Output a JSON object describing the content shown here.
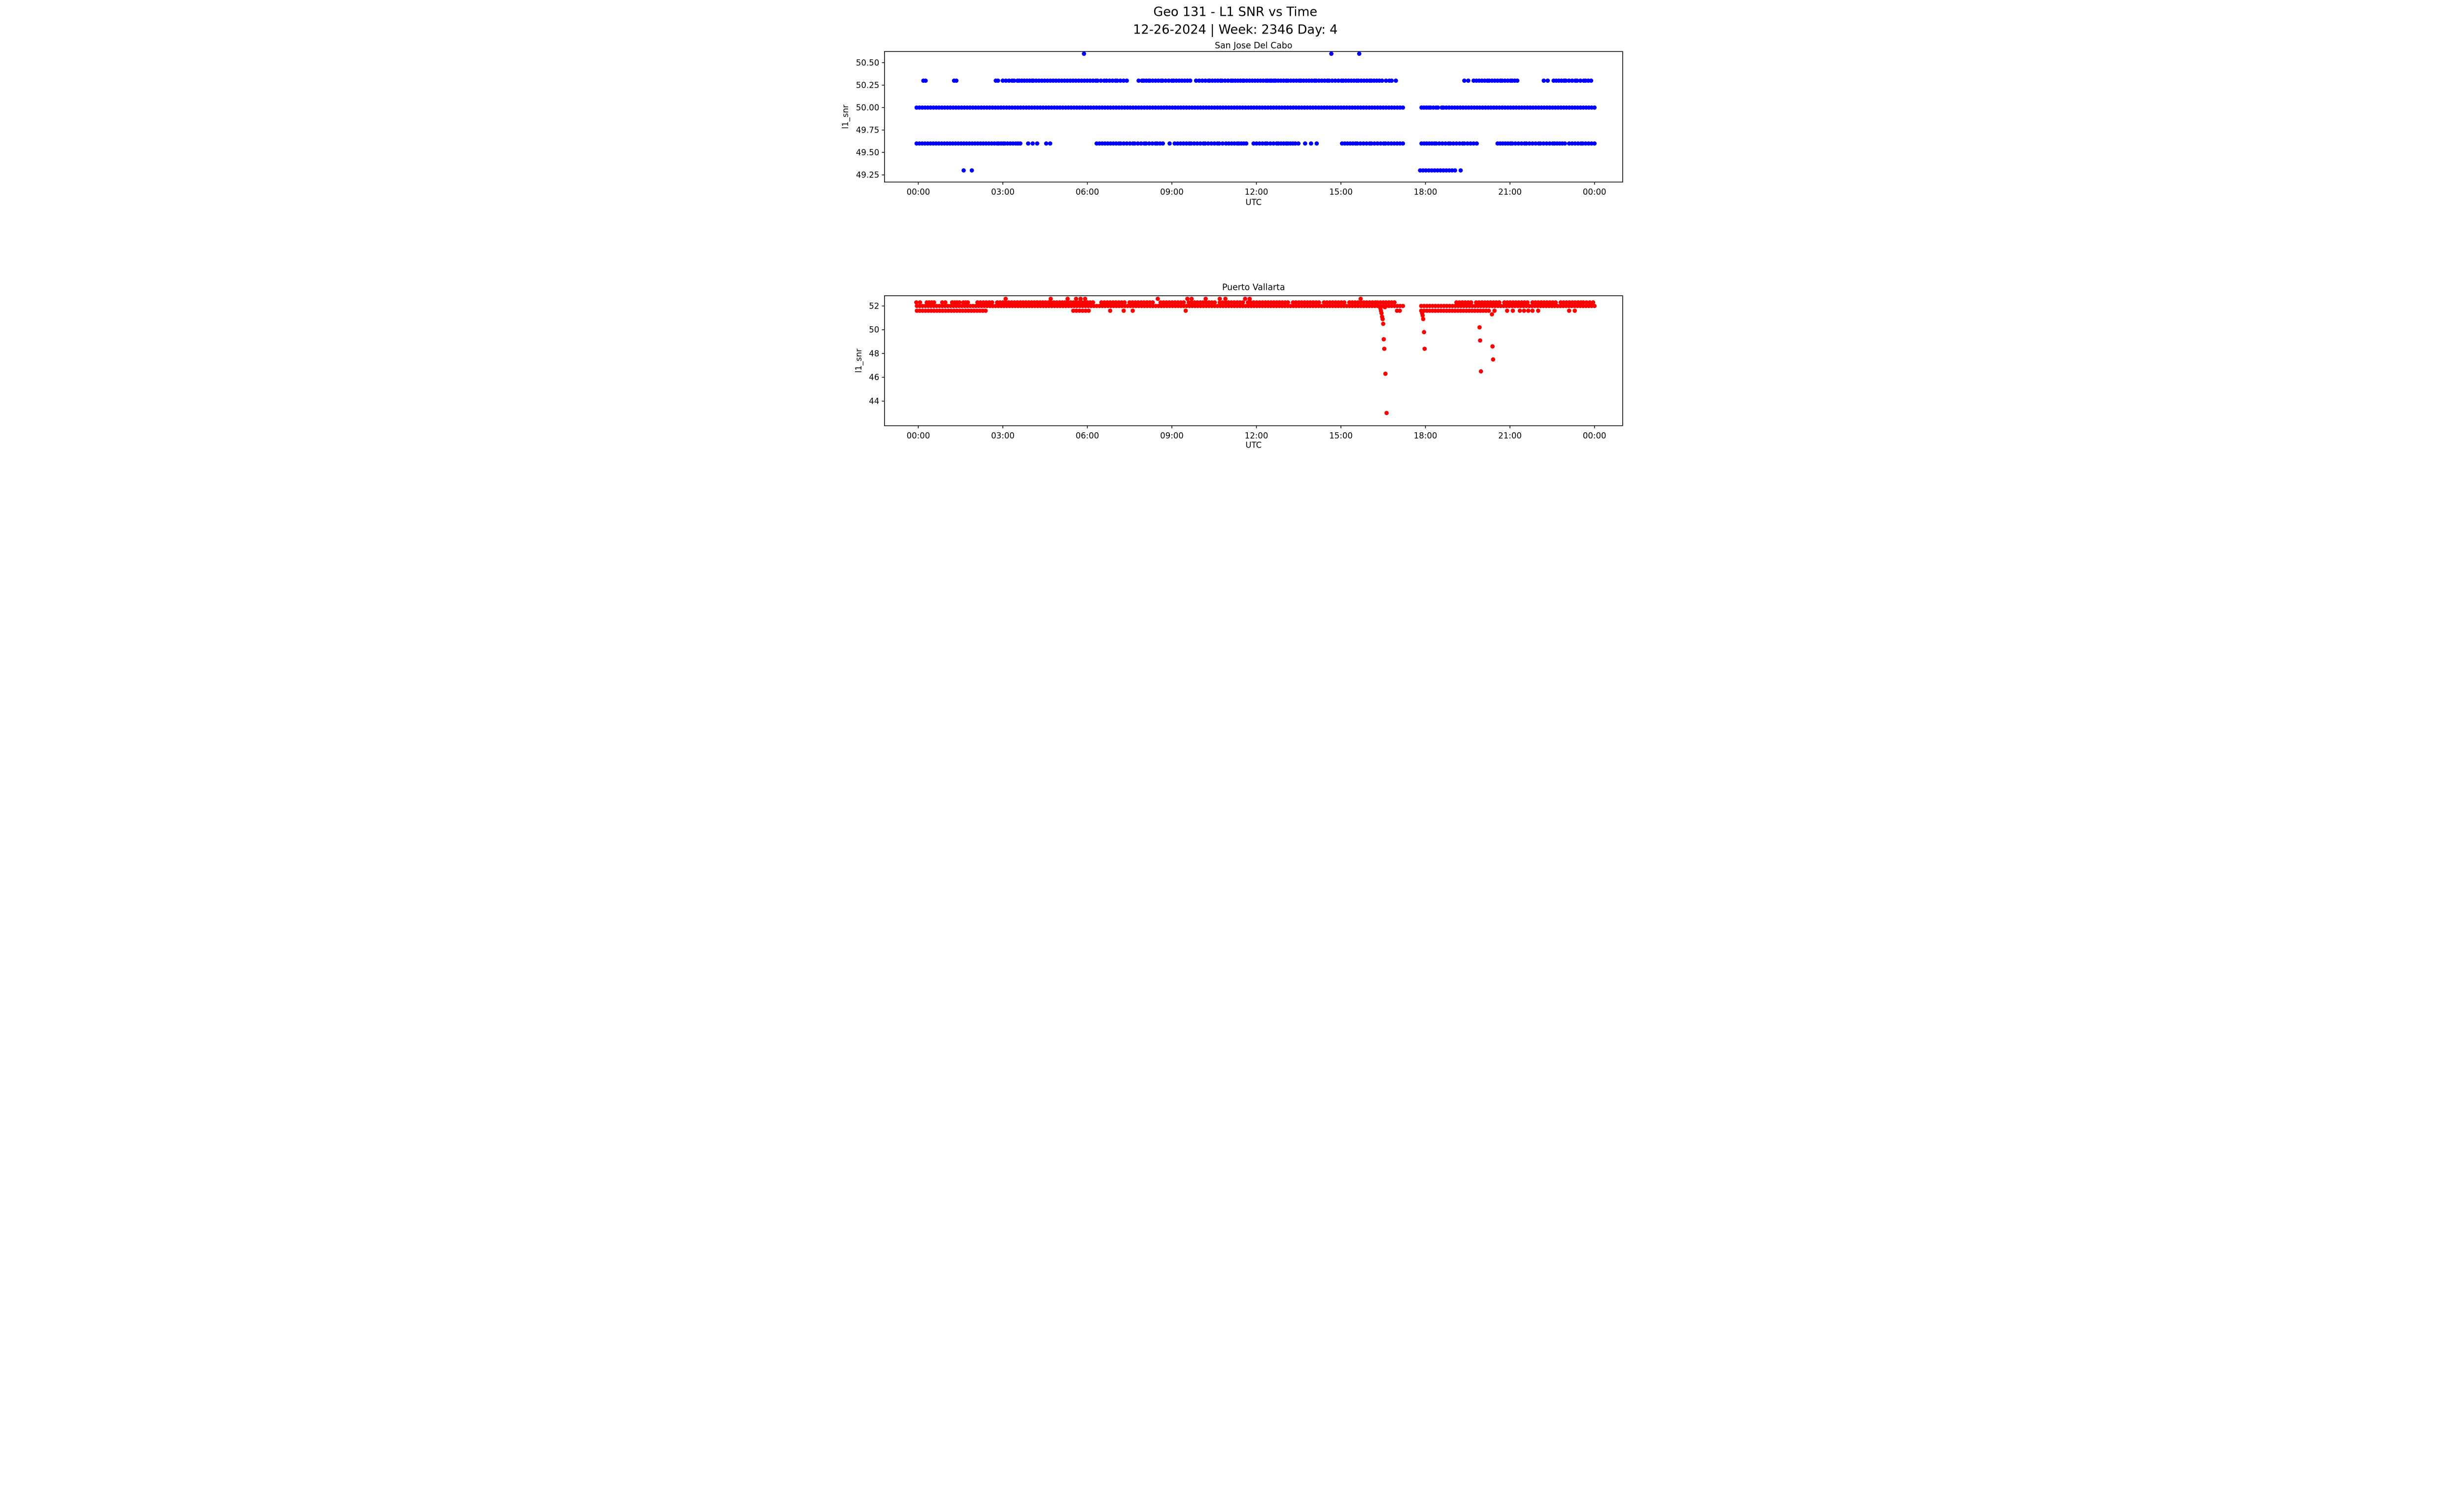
{
  "figure": {
    "title_line1": "Geo 131 - L1 SNR vs Time",
    "title_line2": "12-26-2024 | Week: 2346 Day: 4",
    "background_color": "#ffffff",
    "axis_color": "#000000"
  },
  "chart_data": [
    {
      "type": "scatter",
      "title": "San Jose Del Cabo",
      "xlabel": "UTC",
      "ylabel": "l1_snr",
      "marker_color": "#0000ff",
      "marker_radius_px": 2.9,
      "xlim": [
        -1.2,
        25.0
      ],
      "ylim": [
        49.17,
        50.625
      ],
      "grid": false,
      "legend": "none",
      "x_ticks": [
        {
          "value": 0,
          "label": "00:00"
        },
        {
          "value": 3,
          "label": "03:00"
        },
        {
          "value": 6,
          "label": "06:00"
        },
        {
          "value": 9,
          "label": "09:00"
        },
        {
          "value": 12,
          "label": "12:00"
        },
        {
          "value": 15,
          "label": "15:00"
        },
        {
          "value": 18,
          "label": "18:00"
        },
        {
          "value": 21,
          "label": "21:00"
        },
        {
          "value": 24,
          "label": "00:00"
        }
      ],
      "y_ticks": [
        {
          "value": 50.5,
          "label": "50.50"
        },
        {
          "value": 50.25,
          "label": "50.25"
        },
        {
          "value": 50.0,
          "label": "50.00"
        },
        {
          "value": 49.75,
          "label": "49.75"
        },
        {
          "value": 49.5,
          "label": "49.50"
        },
        {
          "value": 49.25,
          "label": "49.25"
        }
      ],
      "levels": [
        {
          "y": 50.6,
          "segments": [],
          "points": [
            5.88,
            14.66,
            15.65
          ]
        },
        {
          "y": 50.3,
          "segments": [
            [
              0.18,
              0.26
            ],
            [
              1.27,
              1.35
            ],
            [
              2.75,
              2.83
            ],
            [
              3.0,
              3.33
            ],
            [
              3.4,
              3.52
            ],
            [
              3.58,
              4.04
            ],
            [
              4.08,
              6.3
            ],
            [
              6.36,
              6.6
            ],
            [
              6.68,
              7.0
            ],
            [
              7.06,
              7.4
            ],
            [
              7.82,
              7.94
            ],
            [
              8.0,
              8.18
            ],
            [
              8.22,
              8.62
            ],
            [
              8.67,
              9.0
            ],
            [
              9.06,
              9.65
            ],
            [
              9.86,
              10.3
            ],
            [
              10.34,
              10.73
            ],
            [
              10.78,
              11.1
            ],
            [
              11.16,
              11.52
            ],
            [
              11.56,
              12.34
            ],
            [
              12.4,
              12.48
            ],
            [
              12.54,
              12.62
            ],
            [
              12.68,
              13.06
            ],
            [
              13.12,
              13.52
            ],
            [
              13.58,
              14.06
            ],
            [
              14.12,
              14.52
            ],
            [
              14.58,
              15.02
            ],
            [
              15.08,
              15.56
            ],
            [
              15.62,
              16.02
            ],
            [
              16.08,
              16.46
            ],
            [
              16.6,
              16.72
            ],
            [
              16.8,
              16.95
            ],
            [
              19.38,
              19.52
            ],
            [
              19.71,
              20.2
            ],
            [
              20.26,
              20.66
            ],
            [
              20.72,
              21.02
            ],
            [
              21.08,
              21.26
            ],
            [
              22.2,
              22.34
            ],
            [
              22.55,
              22.92
            ],
            [
              22.98,
              23.32
            ],
            [
              23.38,
              23.62
            ],
            [
              23.68,
              23.88
            ]
          ],
          "points": []
        },
        {
          "y": 50.0,
          "segments": [
            [
              -0.06,
              17.2
            ],
            [
              17.86,
              18.12
            ],
            [
              18.18,
              18.38
            ],
            [
              18.44,
              18.58
            ],
            [
              18.64,
              24.0
            ]
          ],
          "points": []
        },
        {
          "y": 49.6,
          "segments": [
            [
              -0.06,
              2.8
            ],
            [
              2.85,
              3.02
            ],
            [
              3.07,
              3.36
            ],
            [
              3.46,
              3.62
            ],
            [
              6.33,
              7.12
            ],
            [
              7.18,
              7.62
            ],
            [
              7.68,
              8.02
            ],
            [
              8.08,
              8.42
            ],
            [
              8.48,
              8.68
            ],
            [
              9.1,
              9.62
            ],
            [
              9.68,
              10.12
            ],
            [
              10.18,
              10.62
            ],
            [
              10.68,
              10.92
            ],
            [
              11.02,
              11.32
            ],
            [
              11.38,
              11.64
            ],
            [
              11.9,
              12.32
            ],
            [
              12.38,
              12.72
            ],
            [
              12.78,
              13.06
            ],
            [
              13.12,
              13.38
            ],
            [
              15.04,
              15.52
            ],
            [
              15.58,
              16.02
            ],
            [
              16.08,
              16.52
            ],
            [
              16.58,
              17.2
            ],
            [
              17.86,
              18.32
            ],
            [
              18.38,
              18.82
            ],
            [
              18.88,
              19.32
            ],
            [
              19.38,
              19.82
            ],
            [
              20.56,
              21.02
            ],
            [
              21.08,
              21.52
            ],
            [
              21.58,
              22.02
            ],
            [
              22.08,
              22.52
            ],
            [
              22.58,
              22.95
            ],
            [
              23.1,
              23.52
            ],
            [
              23.58,
              24.0
            ]
          ],
          "points": [
            3.9,
            4.06,
            4.22,
            4.54,
            4.68,
            8.92,
            13.49,
            13.73,
            13.94,
            14.14
          ]
        },
        {
          "y": 49.3,
          "segments": [
            [
              17.81,
              19.05
            ]
          ],
          "points": [
            1.61,
            1.9,
            19.25
          ]
        }
      ],
      "outliers": []
    },
    {
      "type": "scatter",
      "title": "Puerto Vallarta",
      "xlabel": "UTC",
      "ylabel": "l1_snr",
      "marker_color": "#ff0000",
      "marker_radius_px": 2.9,
      "xlim": [
        -1.2,
        25.0
      ],
      "ylim": [
        41.93,
        52.86
      ],
      "grid": false,
      "legend": "none",
      "x_ticks": [
        {
          "value": 0,
          "label": "00:00"
        },
        {
          "value": 3,
          "label": "03:00"
        },
        {
          "value": 6,
          "label": "06:00"
        },
        {
          "value": 9,
          "label": "09:00"
        },
        {
          "value": 12,
          "label": "12:00"
        },
        {
          "value": 15,
          "label": "15:00"
        },
        {
          "value": 18,
          "label": "18:00"
        },
        {
          "value": 21,
          "label": "21:00"
        },
        {
          "value": 24,
          "label": "00:00"
        }
      ],
      "y_ticks": [
        {
          "value": 52,
          "label": "52"
        },
        {
          "value": 50,
          "label": "50"
        },
        {
          "value": 48,
          "label": "48"
        },
        {
          "value": 46,
          "label": "46"
        },
        {
          "value": 44,
          "label": "44"
        }
      ],
      "levels": [
        {
          "y": 52.6,
          "segments": [],
          "points": [
            3.1,
            4.7,
            5.3,
            5.6,
            5.76,
            5.92,
            8.5,
            9.55,
            9.7,
            10.2,
            10.7,
            10.9,
            11.6,
            11.76,
            15.7
          ]
        },
        {
          "y": 52.3,
          "segments": [
            [
              -0.07,
              0.06
            ],
            [
              0.3,
              0.56
            ],
            [
              0.85,
              0.96
            ],
            [
              1.2,
              1.46
            ],
            [
              1.6,
              1.76
            ],
            [
              2.1,
              2.62
            ],
            [
              2.8,
              3.62
            ],
            [
              3.72,
              4.52
            ],
            [
              4.62,
              6.2
            ],
            [
              6.5,
              7.32
            ],
            [
              7.5,
              8.32
            ],
            [
              8.6,
              9.42
            ],
            [
              9.6,
              10.52
            ],
            [
              10.7,
              11.52
            ],
            [
              11.7,
              12.32
            ],
            [
              12.42,
              13.12
            ],
            [
              13.3,
              14.22
            ],
            [
              14.4,
              15.12
            ],
            [
              15.3,
              16.22
            ],
            [
              16.3,
              16.9
            ],
            [
              19.1,
              19.62
            ],
            [
              19.8,
              20.62
            ],
            [
              20.8,
              21.62
            ],
            [
              21.8,
              22.62
            ],
            [
              22.8,
              23.52
            ],
            [
              23.6,
              23.95
            ]
          ],
          "points": []
        },
        {
          "y": 52.0,
          "segments": [
            [
              -0.05,
              17.2
            ],
            [
              17.85,
              24.0
            ]
          ],
          "points": []
        },
        {
          "y": 51.6,
          "segments": [
            [
              -0.05,
              2.39
            ],
            [
              5.5,
              6.05
            ],
            [
              17.85,
              20.25
            ]
          ],
          "points": [
            6.81,
            7.29,
            7.61,
            9.49,
            16.99,
            17.09,
            20.45,
            20.9,
            21.1,
            21.35,
            21.5,
            21.65,
            21.8,
            22.0,
            23.1,
            23.3
          ]
        }
      ],
      "outliers": [
        [
          16.4,
          51.8
        ],
        [
          16.42,
          51.6
        ],
        [
          16.44,
          51.4
        ],
        [
          16.46,
          51.1
        ],
        [
          16.48,
          50.9
        ],
        [
          16.5,
          50.5
        ],
        [
          16.52,
          49.2
        ],
        [
          16.54,
          48.4
        ],
        [
          16.56,
          51.9
        ],
        [
          16.58,
          46.3
        ],
        [
          16.62,
          43.0
        ],
        [
          17.88,
          51.4
        ],
        [
          17.9,
          51.2
        ],
        [
          17.92,
          50.9
        ],
        [
          17.95,
          49.8
        ],
        [
          17.97,
          48.4
        ],
        [
          19.92,
          50.2
        ],
        [
          19.94,
          49.1
        ],
        [
          19.97,
          46.5
        ],
        [
          20.36,
          51.3
        ],
        [
          20.38,
          48.6
        ],
        [
          20.4,
          47.5
        ]
      ]
    }
  ]
}
